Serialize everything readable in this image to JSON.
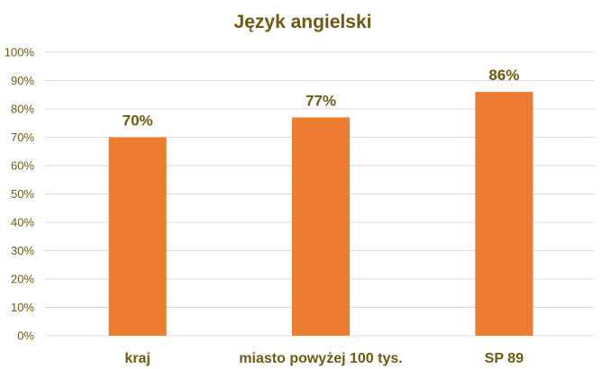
{
  "chart_data": {
    "type": "bar",
    "title": "Język angielski",
    "xlabel": "",
    "ylabel": "",
    "categories": [
      "kraj",
      "miasto powyżej 100 tys.",
      "SP 89"
    ],
    "values": [
      70,
      77,
      86
    ],
    "data_labels": [
      "70%",
      "77%",
      "86%"
    ],
    "ylim": [
      0,
      100
    ],
    "ytick_values": [
      0,
      10,
      20,
      30,
      40,
      50,
      60,
      70,
      80,
      90,
      100
    ],
    "ytick_labels": [
      "0%",
      "10%",
      "20%",
      "30%",
      "40%",
      "50%",
      "60%",
      "70%",
      "80%",
      "90%",
      "100%"
    ],
    "grid": true,
    "legend": "none",
    "colors": {
      "bar": "#ED7D31",
      "text": "#6B5A10",
      "grid": "#D9D9D9"
    }
  }
}
